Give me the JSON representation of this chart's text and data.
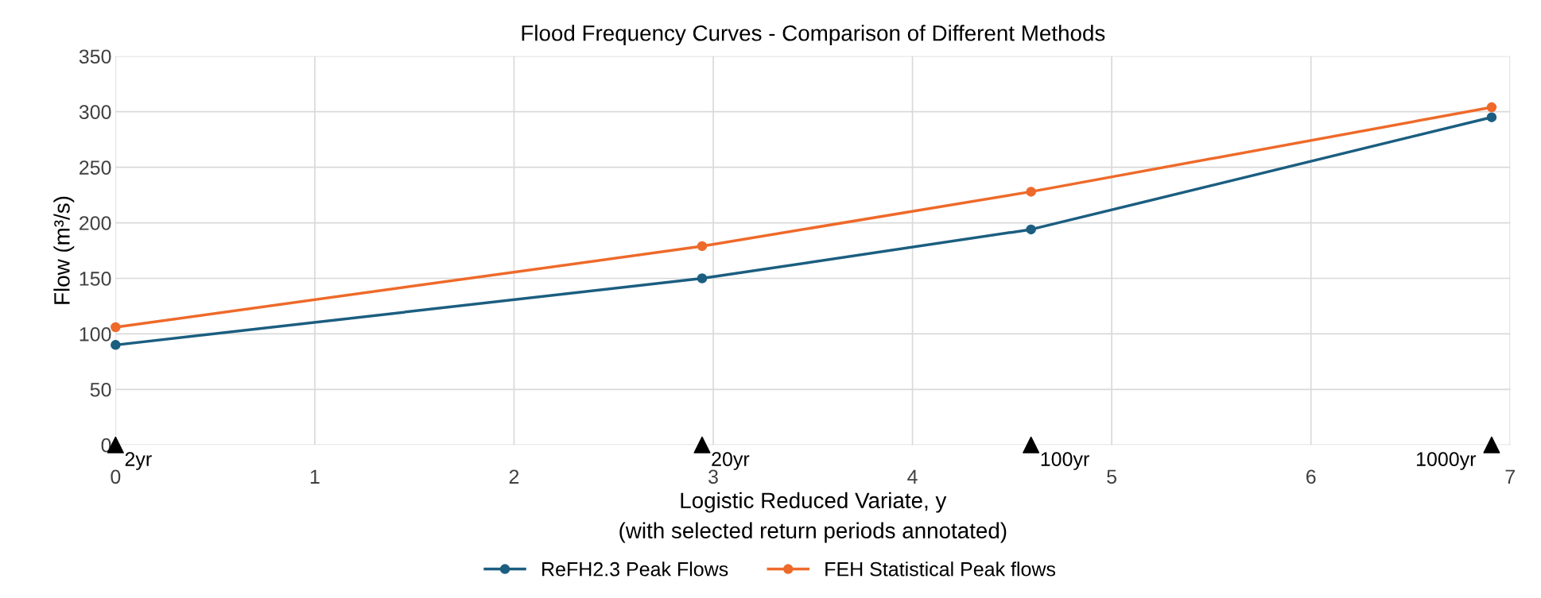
{
  "chart_data": {
    "type": "line",
    "title": "Flood Frequency Curves - Comparison of Different Methods",
    "xlabel": "Logistic Reduced Variate, y\n(with selected return periods annotated)",
    "ylabel": "Flow (m³/s)",
    "series": [
      {
        "name": "ReFH2.3 Peak Flows",
        "color": "#1b5e80",
        "x": [
          0,
          2.944,
          4.595,
          6.907
        ],
        "values": [
          90,
          150,
          194,
          295
        ]
      },
      {
        "name": "FEH Statistical Peak flows",
        "color": "#ee6a2a",
        "x": [
          0,
          2.944,
          4.595,
          6.907
        ],
        "values": [
          106,
          179,
          228,
          304
        ]
      },
      {
        "type": "scatter",
        "marker": "triangle",
        "color": "#000000",
        "x": [
          0,
          2.944,
          4.595,
          6.907
        ],
        "values": [
          0,
          0,
          0,
          0
        ]
      }
    ],
    "annotations": [
      {
        "text": "2yr",
        "x": 0,
        "y": 0
      },
      {
        "text": "20yr",
        "x": 2.944,
        "y": 0
      },
      {
        "text": "100yr",
        "x": 4.595,
        "y": 0
      },
      {
        "text": "1000yr",
        "x": 6.907,
        "y": 0
      }
    ],
    "xlim": [
      0,
      7
    ],
    "xticks": [
      0,
      1,
      2,
      3,
      4,
      5,
      6,
      7
    ],
    "ylim": [
      0,
      350
    ],
    "yticks": [
      0,
      50,
      100,
      150,
      200,
      250,
      300,
      350
    ],
    "grid": true,
    "legend": "bottom",
    "marker": "circle",
    "line_style": "solid"
  }
}
